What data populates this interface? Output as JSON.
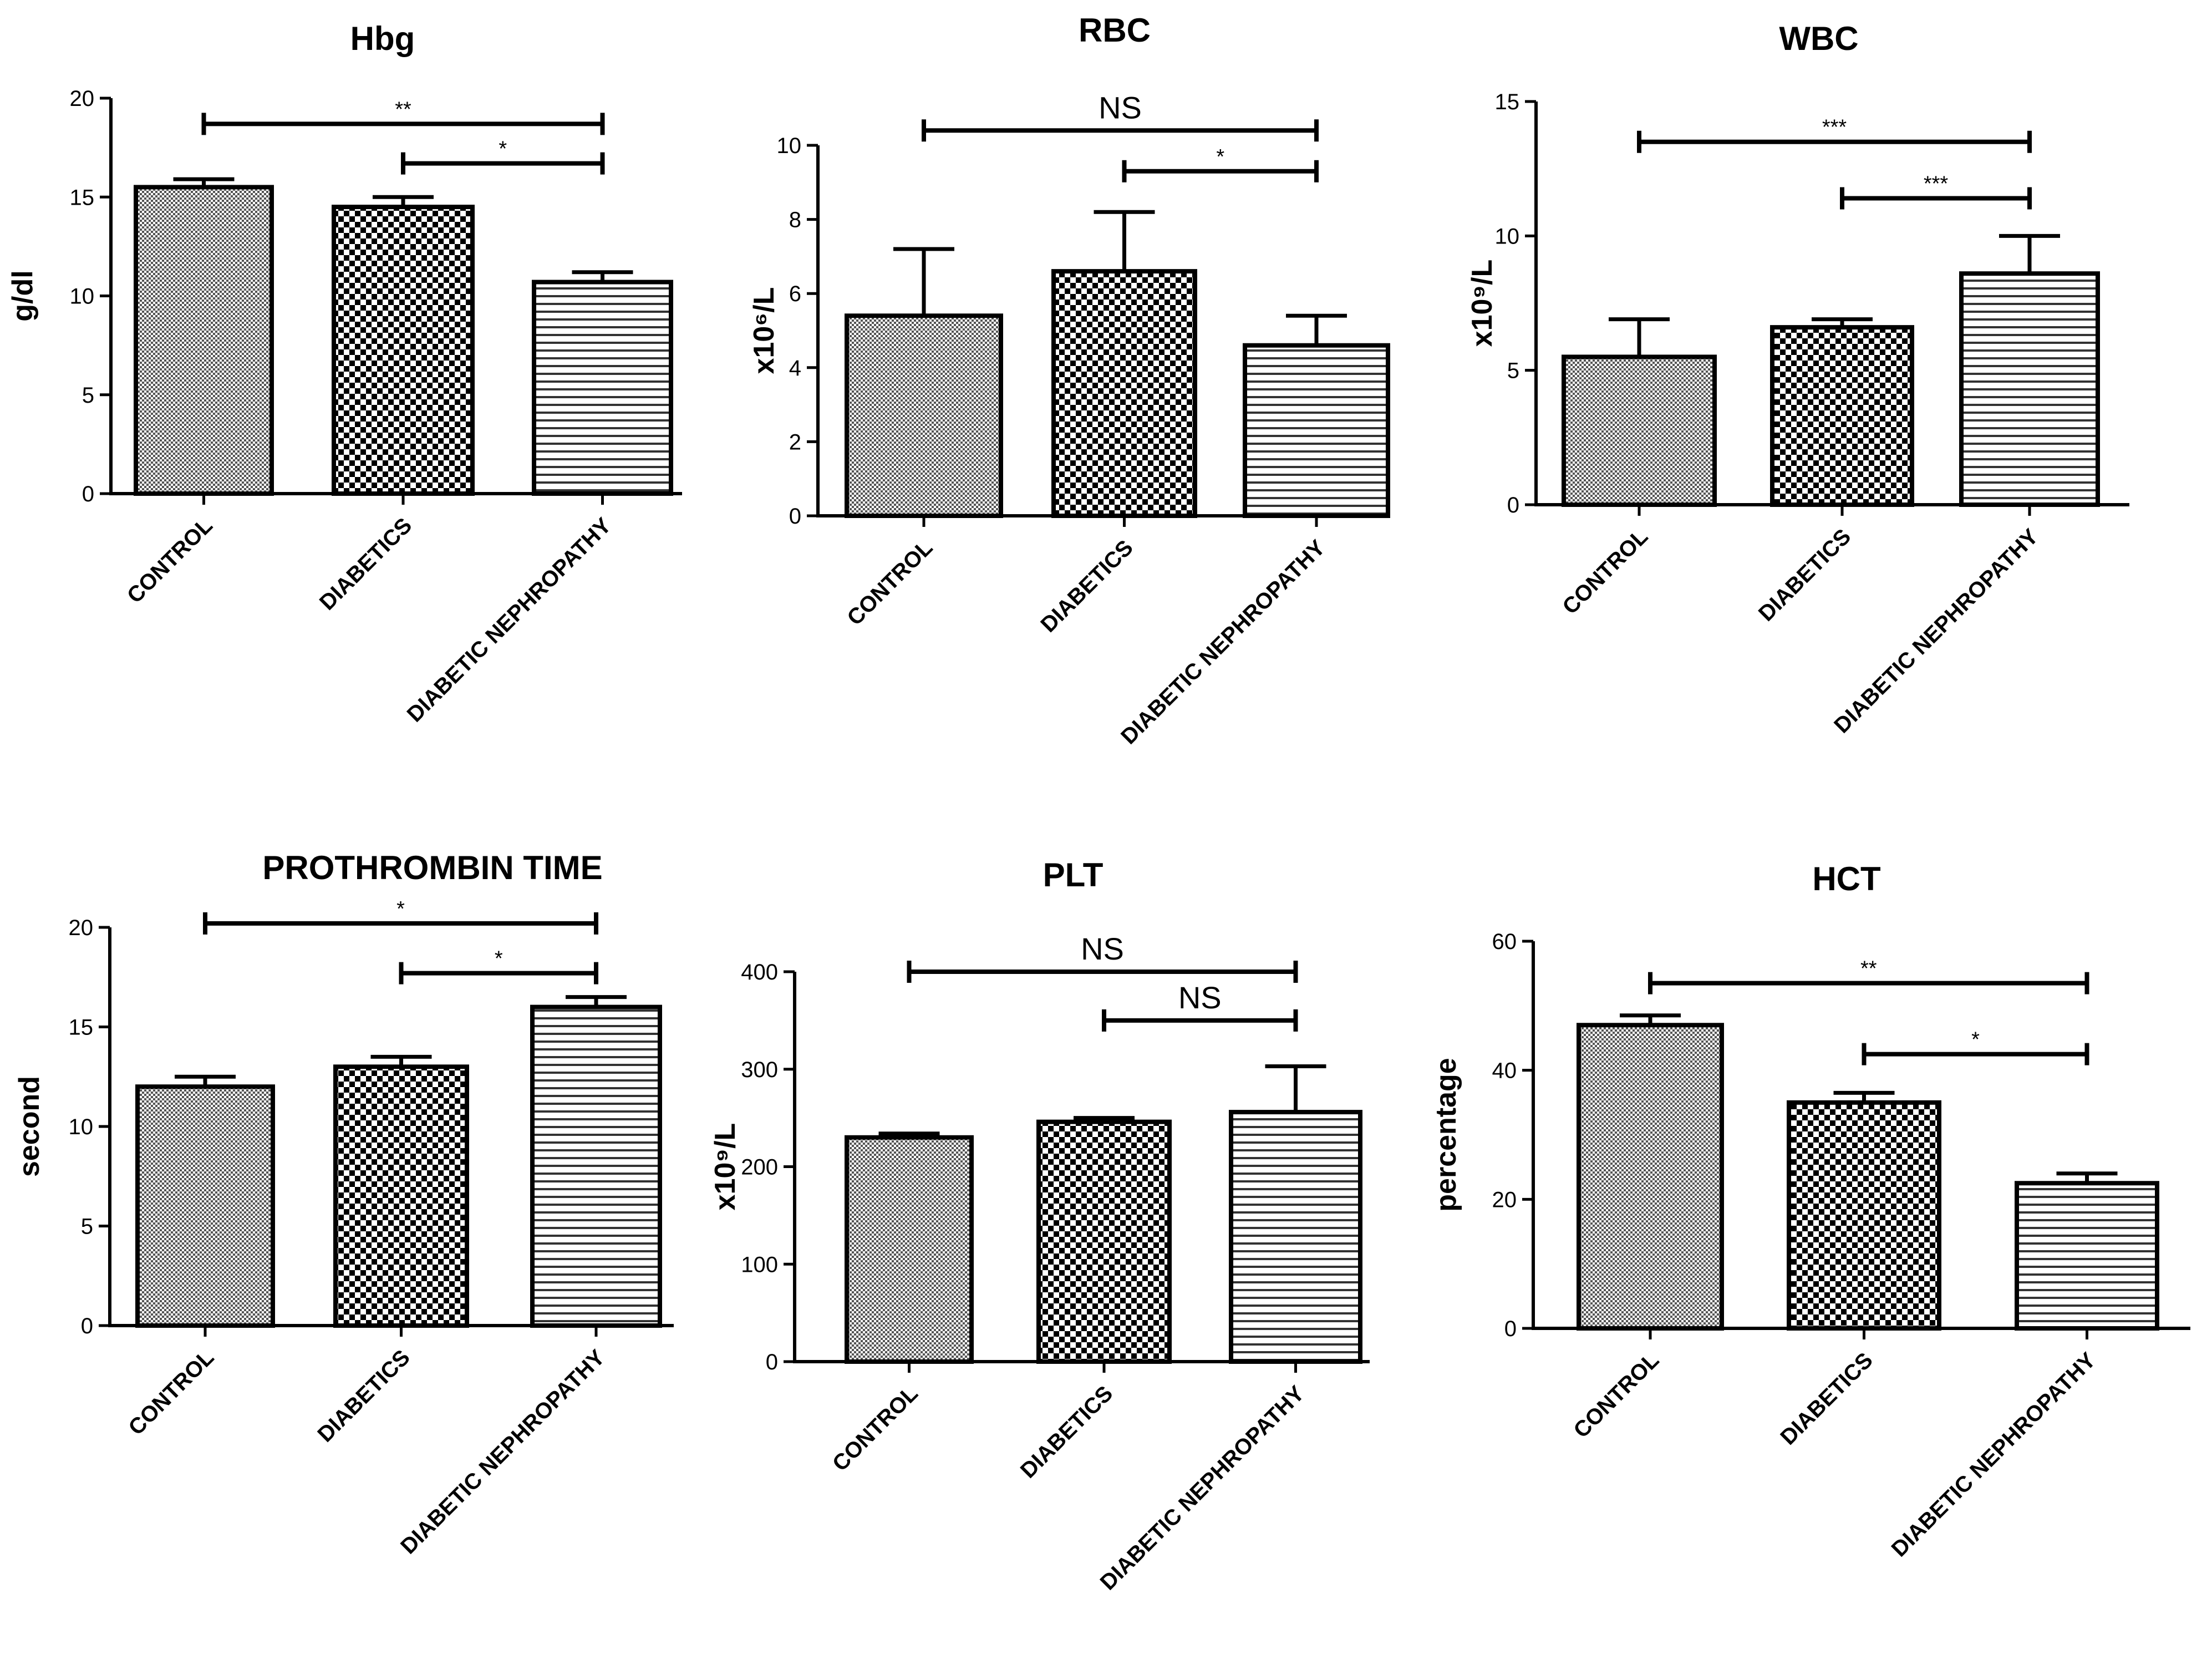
{
  "chart_data": [
    {
      "type": "bar",
      "title": "Hbg",
      "ylabel": "g/dl",
      "ylim": [
        0,
        20
      ],
      "yticks": [
        "0",
        "5",
        "10",
        "15",
        "20"
      ],
      "categories": [
        "CONTROL",
        "DIABETICS",
        "DIABETIC NEPHROPATHY"
      ],
      "values": [
        15.5,
        14.5,
        10.7
      ],
      "errors": [
        0.4,
        0.5,
        0.5
      ],
      "significance": [
        {
          "from": 0,
          "to": 2,
          "label": "**",
          "y": 18.7
        },
        {
          "from": 1,
          "to": 2,
          "label": "*",
          "y": 16.7
        }
      ]
    },
    {
      "type": "bar",
      "title": "RBC",
      "ylabel": "x10⁶/L",
      "ylim": [
        0,
        10
      ],
      "yticks": [
        "0",
        "2",
        "4",
        "6",
        "8",
        "10"
      ],
      "categories": [
        "CONTROL",
        "DIABETICS",
        "DIABETIC NEPHROPATHY"
      ],
      "values": [
        5.4,
        6.6,
        4.6
      ],
      "errors": [
        1.8,
        1.6,
        0.8
      ],
      "significance": [
        {
          "from": 0,
          "to": 2,
          "label": "NS",
          "y": 10.4
        },
        {
          "from": 1,
          "to": 2,
          "label": "*",
          "y": 9.3
        }
      ]
    },
    {
      "type": "bar",
      "title": "WBC",
      "ylabel": "x10⁹/L",
      "ylim": [
        0,
        15
      ],
      "yticks": [
        "0",
        "5",
        "10",
        "15"
      ],
      "categories": [
        "CONTROL",
        "DIABETICS",
        "DIABETIC NEPHROPATHY"
      ],
      "values": [
        5.5,
        6.6,
        8.6
      ],
      "errors": [
        1.4,
        0.3,
        1.4
      ],
      "significance": [
        {
          "from": 0,
          "to": 2,
          "label": "***",
          "y": 13.5
        },
        {
          "from": 1,
          "to": 2,
          "label": "***",
          "y": 11.4
        }
      ]
    },
    {
      "type": "bar",
      "title": "PROTHROMBIN TIME",
      "ylabel": "second",
      "ylim": [
        0,
        20
      ],
      "yticks": [
        "0",
        "5",
        "10",
        "15",
        "20"
      ],
      "categories": [
        "CONTROL",
        "DIABETICS",
        "DIABETIC NEPHROPATHY"
      ],
      "values": [
        12,
        13,
        16
      ],
      "errors": [
        0.5,
        0.5,
        0.5
      ],
      "significance": [
        {
          "from": 0,
          "to": 2,
          "label": "*",
          "y": 20.2
        },
        {
          "from": 1,
          "to": 2,
          "label": "*",
          "y": 17.7
        }
      ]
    },
    {
      "type": "bar",
      "title": "PLT",
      "ylabel": "x10⁹/L",
      "ylim": [
        0,
        400
      ],
      "yticks": [
        "0",
        "100",
        "200",
        "300",
        "400"
      ],
      "categories": [
        "CONTROL",
        "DIABETICS",
        "DIABETIC NEPHROPATHY"
      ],
      "values": [
        230,
        246,
        256
      ],
      "errors": [
        4,
        4,
        47
      ],
      "significance": [
        {
          "from": 0,
          "to": 2,
          "label": "NS",
          "y": 400
        },
        {
          "from": 1,
          "to": 2,
          "label": "NS",
          "y": 350
        }
      ]
    },
    {
      "type": "bar",
      "title": "HCT",
      "ylabel": "percentage",
      "ylim": [
        0,
        60
      ],
      "yticks": [
        "0",
        "20",
        "40",
        "60"
      ],
      "categories": [
        "CONTROL",
        "DIABETICS",
        "DIABETIC NEPHROPATHY"
      ],
      "values": [
        47,
        35,
        22.5
      ],
      "errors": [
        1.5,
        1.5,
        1.5
      ],
      "significance": [
        {
          "from": 0,
          "to": 2,
          "label": "**",
          "y": 53.5
        },
        {
          "from": 1,
          "to": 2,
          "label": "*",
          "y": 42.5
        }
      ]
    }
  ]
}
